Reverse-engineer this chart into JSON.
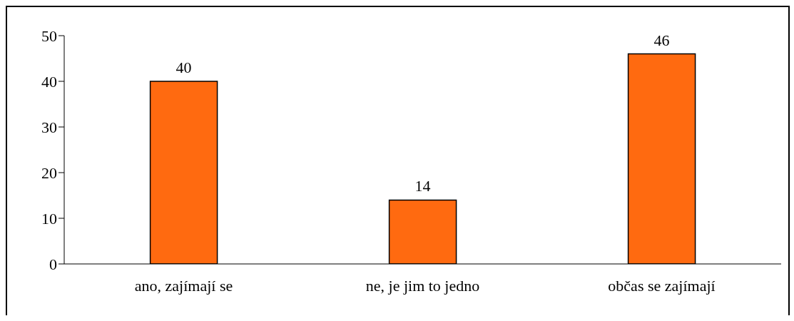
{
  "chart_data": {
    "type": "bar",
    "categories": [
      "ano, zajímají se",
      "ne, je jim to jedno",
      "občas se zajímají"
    ],
    "values": [
      40,
      14,
      46
    ],
    "color": "#ff6a10",
    "ylim": [
      0,
      50
    ],
    "yticks": [
      0,
      10,
      20,
      30,
      40,
      50
    ],
    "data_labels": true,
    "grid": false
  }
}
